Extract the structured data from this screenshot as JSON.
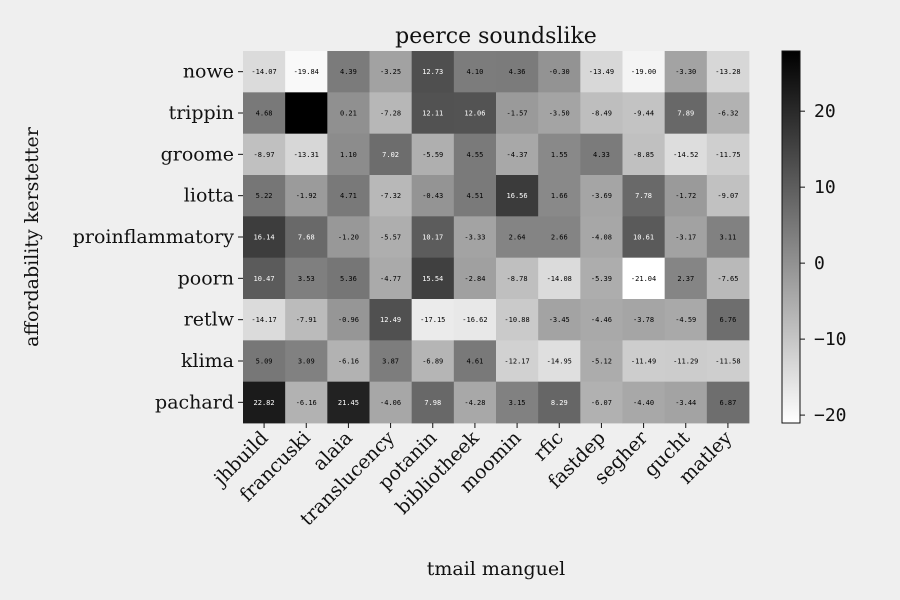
{
  "chart_data": {
    "type": "heatmap",
    "title": "peerce soundslike",
    "xlabel": "tmail manguel",
    "ylabel": "affordability kerstetter",
    "x_categories": [
      "jhbuild",
      "francuski",
      "alaia",
      "translucency",
      "potanin",
      "bibliotheek",
      "moomin",
      "rfic",
      "fastdep",
      "segher",
      "gucht",
      "matley"
    ],
    "y_categories": [
      "nowe",
      "trippin",
      "groome",
      "liotta",
      "proinflammatory",
      "poorn",
      "retlw",
      "klima",
      "pachard"
    ],
    "values": [
      [
        "-14.07",
        "-19.84",
        "4.39",
        "-3.25",
        "12.73",
        "4.10",
        "4.36",
        "-0.30",
        "-13.49",
        "-19.00",
        "-3.30",
        "-13.28"
      ],
      [
        "4.68",
        "27.92",
        "0.21",
        "-7.28",
        "12.11",
        "12.06",
        "-1.57",
        "-3.50",
        "-8.49",
        "-9.44",
        "7.89",
        "-6.32"
      ],
      [
        "-8.97",
        "-13.31",
        "1.10",
        "7.02",
        "-5.59",
        "4.55",
        "-4.37",
        "1.55",
        "4.33",
        "-8.85",
        "-14.52",
        "-11.75"
      ],
      [
        "5.22",
        "-1.92",
        "4.71",
        "-7.32",
        "-0.43",
        "4.51",
        "16.56",
        "1.66",
        "-3.69",
        "7.78",
        "-1.72",
        "-9.07"
      ],
      [
        "16.14",
        "7.68",
        "-1.20",
        "-5.57",
        "10.17",
        "-3.33",
        "2.64",
        "2.66",
        "-4.08",
        "10.61",
        "-3.17",
        "3.11"
      ],
      [
        "10.47",
        "3.53",
        "5.36",
        "-4.77",
        "15.54",
        "-2.84",
        "-8.78",
        "-14.08",
        "-5.39",
        "-21.04",
        "2.37",
        "-7.65"
      ],
      [
        "-14.17",
        "-7.91",
        "-0.96",
        "12.49",
        "-17.15",
        "-16.62",
        "-10.88",
        "-3.45",
        "-4.46",
        "-3.78",
        "-4.59",
        "6.76"
      ],
      [
        "5.09",
        "3.09",
        "-6.16",
        "3.87",
        "-6.89",
        "4.61",
        "-12.17",
        "-14.95",
        "-5.12",
        "-11.49",
        "-11.29",
        "-11.58"
      ],
      [
        "22.82",
        "-6.16",
        "21.45",
        "-4.06",
        "7.98",
        "-4.28",
        "3.15",
        "8.29",
        "-6.07",
        "-4.40",
        "-3.44",
        "6.87"
      ]
    ],
    "hidden_cell_labels": [
      [
        1,
        1
      ]
    ],
    "color_range": [
      -21.04,
      27.92
    ],
    "colormap": "gray_r",
    "colorbar_ticks": [
      "20",
      "10",
      "0",
      "−10",
      "−20"
    ],
    "colors": {
      "background": "#efefef",
      "low": "#ffffff",
      "high": "#000000"
    }
  }
}
